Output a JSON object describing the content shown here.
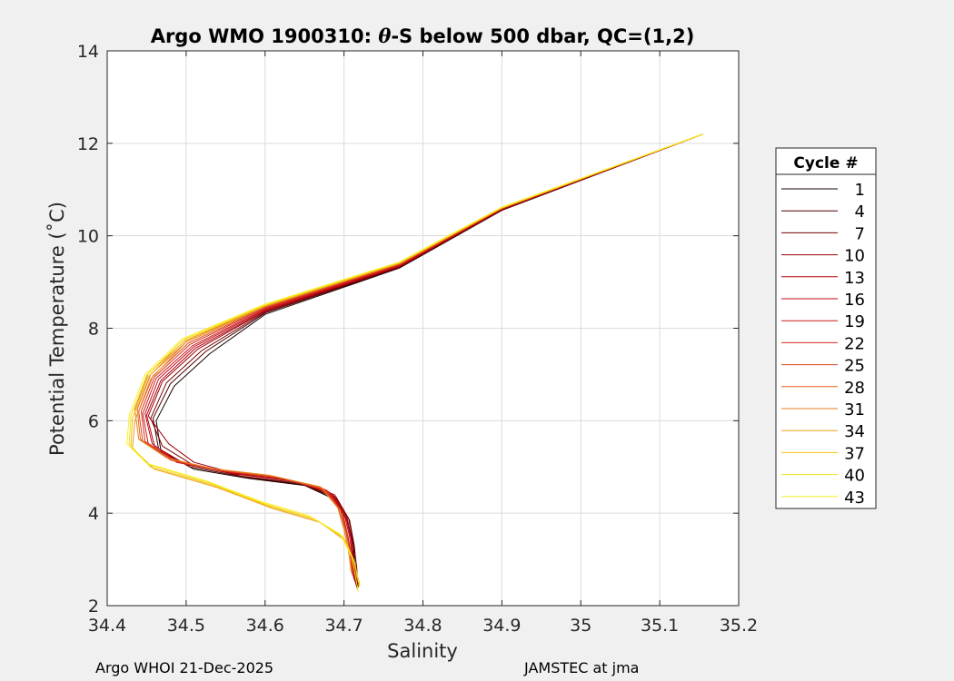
{
  "figure": {
    "title_prefix": "Argo WMO 1900310: ",
    "title_theta": "θ",
    "title_suffix": "-S below 500 dbar,  QC=(1,2)",
    "footer_left": "Argo WHOI 21-Dec-2025",
    "footer_right": "JAMSTEC at jma"
  },
  "colors": {
    "figure_background": "#f0f0f0",
    "axes_background": "#ffffff",
    "grid": "#dcdcdc"
  },
  "chart_data": {
    "type": "line",
    "title": "Argo WMO 1900310: θ-S below 500 dbar,  QC=(1,2)",
    "xlabel": "Salinity",
    "ylabel": "Potential Temperature (˚C)",
    "xlim": [
      34.4,
      35.2
    ],
    "ylim": [
      2,
      14
    ],
    "xticks": [
      34.4,
      34.5,
      34.6,
      34.7,
      34.8,
      34.9,
      35,
      35.1,
      35.2
    ],
    "xtick_labels": [
      "34.4",
      "34.5",
      "34.6",
      "34.7",
      "34.8",
      "34.9",
      "35",
      "35.1",
      "35.2"
    ],
    "yticks": [
      2,
      4,
      6,
      8,
      10,
      12,
      14
    ],
    "ytick_labels": [
      "2",
      "4",
      "6",
      "8",
      "10",
      "12",
      "14"
    ],
    "grid": true,
    "legend": {
      "title": "Cycle #",
      "placement": "right, outside axes",
      "entries": [
        "1",
        "4",
        "7",
        "10",
        "13",
        "16",
        "19",
        "22",
        "25",
        "28",
        "31",
        "34",
        "37",
        "40",
        "43"
      ]
    },
    "colormap": "dark red (early cycles) to yellow (late cycles)",
    "series_colors": [
      "#1a0000",
      "#4a0000",
      "#7a0000",
      "#9a0008",
      "#b00010",
      "#c00a12",
      "#cc1818",
      "#d42e1a",
      "#dc481c",
      "#e2601e",
      "#e87e1c",
      "#eea01a",
      "#f2c018",
      "#f6de18",
      "#f8f020"
    ],
    "series": [
      {
        "name": "1",
        "points": [
          [
            35.155,
            12.2
          ],
          [
            34.9,
            10.55
          ],
          [
            34.77,
            9.3
          ],
          [
            34.6,
            8.3
          ],
          [
            34.53,
            7.45
          ],
          [
            34.485,
            6.75
          ],
          [
            34.462,
            6.0
          ],
          [
            34.468,
            5.35
          ],
          [
            34.51,
            4.95
          ],
          [
            34.58,
            4.75
          ],
          [
            34.65,
            4.6
          ],
          [
            34.688,
            4.3
          ],
          [
            34.705,
            3.8
          ],
          [
            34.712,
            3.3
          ],
          [
            34.714,
            2.8
          ],
          [
            34.716,
            2.4
          ]
        ]
      },
      {
        "name": "4",
        "points": [
          [
            35.155,
            12.2
          ],
          [
            34.9,
            10.56
          ],
          [
            34.77,
            9.31
          ],
          [
            34.6,
            8.33
          ],
          [
            34.525,
            7.5
          ],
          [
            34.48,
            6.8
          ],
          [
            34.458,
            6.05
          ],
          [
            34.465,
            5.4
          ],
          [
            34.505,
            5.0
          ],
          [
            34.575,
            4.78
          ],
          [
            34.648,
            4.62
          ],
          [
            34.69,
            4.32
          ],
          [
            34.707,
            3.85
          ],
          [
            34.713,
            3.3
          ],
          [
            34.716,
            2.8
          ],
          [
            34.717,
            2.35
          ]
        ]
      },
      {
        "name": "7",
        "points": [
          [
            35.155,
            12.2
          ],
          [
            34.9,
            10.56
          ],
          [
            34.77,
            9.32
          ],
          [
            34.6,
            8.35
          ],
          [
            34.52,
            7.52
          ],
          [
            34.475,
            6.82
          ],
          [
            34.455,
            6.05
          ],
          [
            34.47,
            5.45
          ],
          [
            34.508,
            5.05
          ],
          [
            34.57,
            4.8
          ],
          [
            34.645,
            4.65
          ],
          [
            34.69,
            4.35
          ],
          [
            34.706,
            3.88
          ],
          [
            34.712,
            3.35
          ],
          [
            34.716,
            2.85
          ],
          [
            34.718,
            2.4
          ]
        ]
      },
      {
        "name": "10",
        "points": [
          [
            35.155,
            12.2
          ],
          [
            34.9,
            10.57
          ],
          [
            34.77,
            9.33
          ],
          [
            34.6,
            8.37
          ],
          [
            34.515,
            7.55
          ],
          [
            34.47,
            6.85
          ],
          [
            34.452,
            6.1
          ],
          [
            34.478,
            5.5
          ],
          [
            34.51,
            5.1
          ],
          [
            34.565,
            4.85
          ],
          [
            34.64,
            4.68
          ],
          [
            34.688,
            4.4
          ],
          [
            34.704,
            3.9
          ],
          [
            34.71,
            3.4
          ],
          [
            34.713,
            2.9
          ],
          [
            34.715,
            2.45
          ]
        ]
      },
      {
        "name": "13",
        "points": [
          [
            35.155,
            12.2
          ],
          [
            34.9,
            10.57
          ],
          [
            34.77,
            9.34
          ],
          [
            34.6,
            8.38
          ],
          [
            34.512,
            7.57
          ],
          [
            34.468,
            6.87
          ],
          [
            34.45,
            6.12
          ],
          [
            34.46,
            5.45
          ],
          [
            34.5,
            5.05
          ],
          [
            34.56,
            4.85
          ],
          [
            34.635,
            4.7
          ],
          [
            34.685,
            4.42
          ],
          [
            34.702,
            3.95
          ],
          [
            34.709,
            3.45
          ],
          [
            34.712,
            2.95
          ],
          [
            34.714,
            2.5
          ]
        ]
      },
      {
        "name": "16",
        "points": [
          [
            35.155,
            12.2
          ],
          [
            34.9,
            10.58
          ],
          [
            34.77,
            9.35
          ],
          [
            34.6,
            8.4
          ],
          [
            34.51,
            7.6
          ],
          [
            34.465,
            6.9
          ],
          [
            34.448,
            6.15
          ],
          [
            34.457,
            5.5
          ],
          [
            34.49,
            5.1
          ],
          [
            34.555,
            4.88
          ],
          [
            34.63,
            4.72
          ],
          [
            34.682,
            4.45
          ],
          [
            34.7,
            4.0
          ],
          [
            34.707,
            3.5
          ],
          [
            34.711,
            3.0
          ],
          [
            34.713,
            2.55
          ]
        ]
      },
      {
        "name": "19",
        "points": [
          [
            35.155,
            12.2
          ],
          [
            34.9,
            10.58
          ],
          [
            34.77,
            9.36
          ],
          [
            34.6,
            8.42
          ],
          [
            34.508,
            7.62
          ],
          [
            34.462,
            6.92
          ],
          [
            34.445,
            6.15
          ],
          [
            34.452,
            5.5
          ],
          [
            34.488,
            5.1
          ],
          [
            34.55,
            4.9
          ],
          [
            34.625,
            4.74
          ],
          [
            34.68,
            4.47
          ],
          [
            34.698,
            4.02
          ],
          [
            34.705,
            3.5
          ],
          [
            34.71,
            3.0
          ],
          [
            34.712,
            2.6
          ]
        ]
      },
      {
        "name": "22",
        "points": [
          [
            35.155,
            12.2
          ],
          [
            34.9,
            10.59
          ],
          [
            34.77,
            9.37
          ],
          [
            34.6,
            8.44
          ],
          [
            34.505,
            7.65
          ],
          [
            34.46,
            6.95
          ],
          [
            34.443,
            6.2
          ],
          [
            34.448,
            5.55
          ],
          [
            34.485,
            5.15
          ],
          [
            34.545,
            4.92
          ],
          [
            34.62,
            4.76
          ],
          [
            34.678,
            4.5
          ],
          [
            34.696,
            4.05
          ],
          [
            34.704,
            3.55
          ],
          [
            34.709,
            3.05
          ],
          [
            34.711,
            2.65
          ]
        ]
      },
      {
        "name": "25",
        "points": [
          [
            35.155,
            12.2
          ],
          [
            34.9,
            10.59
          ],
          [
            34.77,
            9.38
          ],
          [
            34.6,
            8.45
          ],
          [
            34.503,
            7.68
          ],
          [
            34.458,
            6.97
          ],
          [
            34.44,
            6.2
          ],
          [
            34.445,
            5.55
          ],
          [
            34.48,
            5.15
          ],
          [
            34.54,
            4.93
          ],
          [
            34.615,
            4.78
          ],
          [
            34.675,
            4.52
          ],
          [
            34.695,
            4.08
          ],
          [
            34.703,
            3.6
          ],
          [
            34.708,
            3.1
          ],
          [
            34.71,
            2.7
          ]
        ]
      },
      {
        "name": "28",
        "points": [
          [
            35.155,
            12.2
          ],
          [
            34.9,
            10.6
          ],
          [
            34.77,
            9.39
          ],
          [
            34.6,
            8.47
          ],
          [
            34.5,
            7.7
          ],
          [
            34.455,
            7.0
          ],
          [
            34.438,
            6.25
          ],
          [
            34.442,
            5.6
          ],
          [
            34.478,
            5.18
          ],
          [
            34.535,
            4.95
          ],
          [
            34.61,
            4.8
          ],
          [
            34.672,
            4.55
          ],
          [
            34.693,
            4.1
          ],
          [
            34.702,
            3.6
          ],
          [
            34.708,
            3.1
          ],
          [
            34.71,
            2.7
          ]
        ]
      },
      {
        "name": "31",
        "points": [
          [
            35.155,
            12.2
          ],
          [
            34.9,
            10.6
          ],
          [
            34.77,
            9.4
          ],
          [
            34.6,
            8.48
          ],
          [
            34.498,
            7.72
          ],
          [
            34.452,
            7.02
          ],
          [
            34.435,
            6.25
          ],
          [
            34.44,
            5.6
          ],
          [
            34.475,
            5.2
          ],
          [
            34.53,
            4.97
          ],
          [
            34.605,
            4.82
          ],
          [
            34.67,
            4.57
          ],
          [
            34.692,
            4.12
          ],
          [
            34.7,
            3.65
          ],
          [
            34.706,
            3.15
          ],
          [
            34.709,
            2.75
          ]
        ]
      },
      {
        "name": "34",
        "points": [
          [
            35.155,
            12.2
          ],
          [
            34.9,
            10.6
          ],
          [
            34.77,
            9.4
          ],
          [
            34.6,
            8.48
          ],
          [
            34.5,
            7.7
          ],
          [
            34.455,
            6.9
          ],
          [
            34.435,
            6.0
          ],
          [
            34.432,
            5.4
          ],
          [
            34.46,
            4.95
          ],
          [
            34.54,
            4.55
          ],
          [
            34.61,
            4.1
          ],
          [
            34.67,
            3.8
          ],
          [
            34.702,
            3.4
          ],
          [
            34.714,
            2.9
          ],
          [
            34.718,
            2.5
          ]
        ]
      },
      {
        "name": "37",
        "points": [
          [
            35.155,
            12.2
          ],
          [
            34.9,
            10.61
          ],
          [
            34.77,
            9.41
          ],
          [
            34.6,
            8.5
          ],
          [
            34.498,
            7.73
          ],
          [
            34.452,
            6.95
          ],
          [
            34.432,
            6.05
          ],
          [
            34.43,
            5.45
          ],
          [
            34.455,
            5.0
          ],
          [
            34.535,
            4.6
          ],
          [
            34.605,
            4.15
          ],
          [
            34.665,
            3.85
          ],
          [
            34.7,
            3.45
          ],
          [
            34.713,
            2.95
          ],
          [
            34.72,
            2.45
          ]
        ]
      },
      {
        "name": "40",
        "points": [
          [
            35.155,
            12.2
          ],
          [
            34.9,
            10.61
          ],
          [
            34.77,
            9.42
          ],
          [
            34.6,
            8.5
          ],
          [
            34.496,
            7.75
          ],
          [
            34.45,
            6.98
          ],
          [
            34.43,
            6.1
          ],
          [
            34.428,
            5.5
          ],
          [
            34.452,
            5.05
          ],
          [
            34.53,
            4.65
          ],
          [
            34.6,
            4.2
          ],
          [
            34.66,
            3.9
          ],
          [
            34.698,
            3.5
          ],
          [
            34.712,
            3.0
          ],
          [
            34.72,
            2.4
          ]
        ]
      },
      {
        "name": "43",
        "points": [
          [
            35.155,
            12.2
          ],
          [
            34.9,
            10.62
          ],
          [
            34.77,
            9.43
          ],
          [
            34.6,
            8.52
          ],
          [
            34.495,
            7.77
          ],
          [
            34.448,
            7.0
          ],
          [
            34.428,
            6.12
          ],
          [
            34.425,
            5.5
          ],
          [
            34.45,
            5.08
          ],
          [
            34.525,
            4.7
          ],
          [
            34.595,
            4.25
          ],
          [
            34.655,
            3.95
          ],
          [
            34.695,
            3.55
          ],
          [
            34.71,
            3.05
          ],
          [
            34.718,
            2.3
          ]
        ]
      }
    ]
  }
}
